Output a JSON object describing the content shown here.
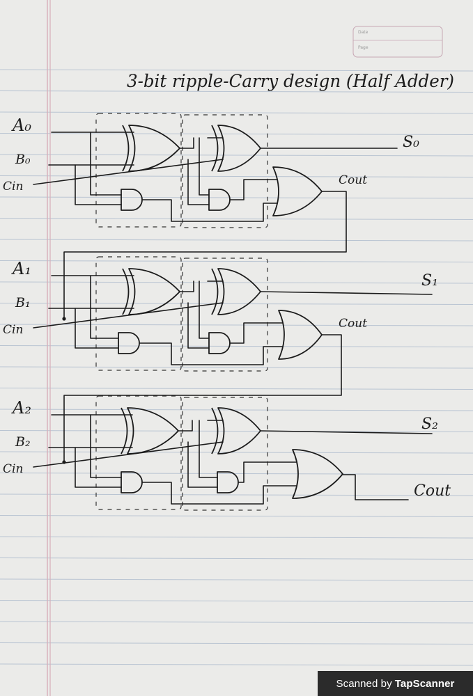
{
  "page": {
    "date_label": "Date",
    "page_label": "Page"
  },
  "title": "3-bit ripple-Carry design (Half Adder)",
  "stages": [
    {
      "a": "A₀",
      "b": "B₀",
      "cin": "Cin",
      "sum": "S₀",
      "cout": "Cout"
    },
    {
      "a": "A₁",
      "b": "B₁",
      "cin": "Cin",
      "sum": "S₁",
      "cout": "Cout"
    },
    {
      "a": "A₂",
      "b": "B₂",
      "cin": "Cin",
      "sum": "S₂",
      "cout": "Cout"
    }
  ],
  "watermark": {
    "prefix": "Scanned by",
    "brand": "TapScanner"
  },
  "colors": {
    "paper": "#ebebe9",
    "rule_line": "#b9c4d2",
    "margin_line": "#d7aeb9",
    "ink": "#1b1b1b"
  }
}
